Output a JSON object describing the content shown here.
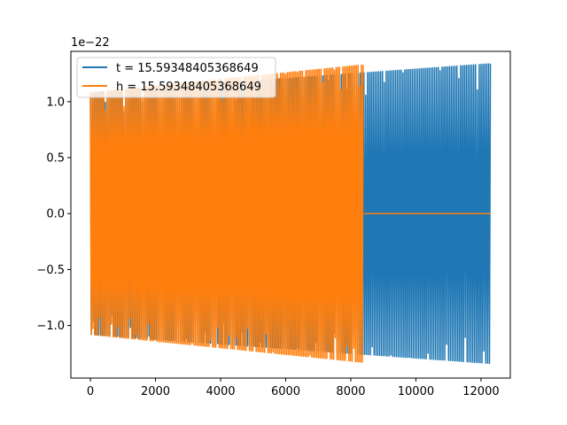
{
  "chart_data": {
    "type": "line",
    "offset_label": "1e−22",
    "x_ticks": [
      {
        "value": 0,
        "label": "0"
      },
      {
        "value": 2000,
        "label": "2000"
      },
      {
        "value": 4000,
        "label": "4000"
      },
      {
        "value": 6000,
        "label": "6000"
      },
      {
        "value": 8000,
        "label": "8000"
      },
      {
        "value": 10000,
        "label": "10000"
      },
      {
        "value": 12000,
        "label": "12000"
      }
    ],
    "y_ticks": [
      {
        "value": -1.0,
        "label": "−1.0"
      },
      {
        "value": -0.5,
        "label": "−0.5"
      },
      {
        "value": 0.0,
        "label": "0.0"
      },
      {
        "value": 0.5,
        "label": "0.5"
      },
      {
        "value": 1.0,
        "label": "1.0"
      }
    ],
    "xlim": [
      -600,
      12900
    ],
    "ylim": [
      -1.47,
      1.45
    ],
    "grid": false,
    "legend_position": "upper-left",
    "series": [
      {
        "name": "t = 15.59348405368649",
        "color": "#1f77b4",
        "x_range": [
          0,
          12300
        ],
        "envelope_start": 1.08,
        "envelope_end": 1.34,
        "oscillation": "dense"
      },
      {
        "name": "h = 15.59348405368649",
        "color": "#ff7f0e",
        "x_range": [
          0,
          8400
        ],
        "envelope_start": 1.08,
        "envelope_end": 1.33,
        "oscillation": "dense",
        "after_end": {
          "x_range": [
            8400,
            12300
          ],
          "y": 0.0
        }
      }
    ]
  }
}
